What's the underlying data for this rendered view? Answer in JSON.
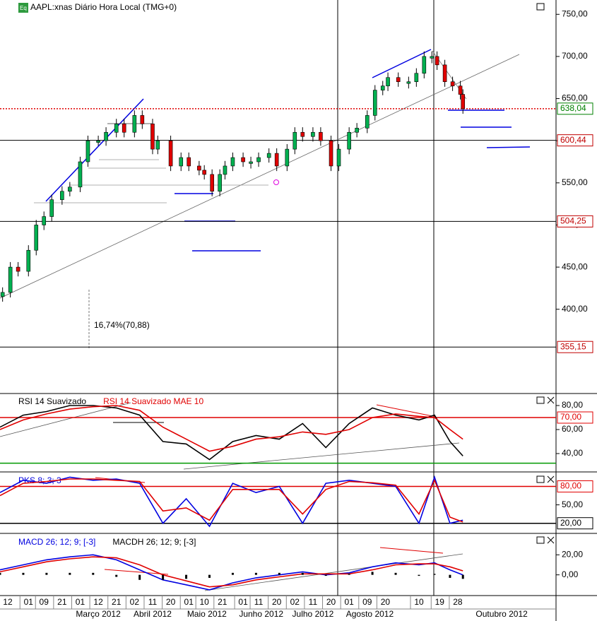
{
  "chart_data": [
    {
      "type": "candlestick",
      "title": "AAPL:xnas Diário Hora Local (TMG+0)",
      "annotation": "16,74%(70,88)",
      "xlim": [
        0,
        215
      ],
      "ylim": [
        300,
        767
      ],
      "yticks": [
        {
          "value": 400,
          "label": "400,00"
        },
        {
          "value": 450,
          "label": "450,00"
        },
        {
          "value": 500,
          "label": "500,00"
        },
        {
          "value": 550,
          "label": "550,00"
        },
        {
          "value": 600,
          "label": "600,00"
        },
        {
          "value": 650,
          "label": "650,00"
        },
        {
          "value": 700,
          "label": "700,00"
        },
        {
          "value": 750,
          "label": "750,00"
        }
      ],
      "xticks": [
        {
          "value": 3,
          "label": "12"
        },
        {
          "value": 11,
          "label": "01"
        },
        {
          "value": 17,
          "label": "09"
        },
        {
          "value": 24,
          "label": "21"
        },
        {
          "value": 31,
          "label": "01"
        },
        {
          "value": 38,
          "label": "12"
        },
        {
          "value": 45,
          "label": "21"
        },
        {
          "value": 52,
          "label": "02"
        },
        {
          "value": 59,
          "label": "11"
        },
        {
          "value": 66,
          "label": "20"
        },
        {
          "value": 73,
          "label": "01"
        },
        {
          "value": 79,
          "label": "10"
        },
        {
          "value": 86,
          "label": "21"
        },
        {
          "value": 94,
          "label": "01"
        },
        {
          "value": 100,
          "label": "11"
        },
        {
          "value": 107,
          "label": "20"
        },
        {
          "value": 114,
          "label": "02"
        },
        {
          "value": 121,
          "label": "11"
        },
        {
          "value": 128,
          "label": "20"
        },
        {
          "value": 135,
          "label": "01"
        },
        {
          "value": 142,
          "label": "09"
        },
        {
          "value": 149,
          "label": "20"
        },
        {
          "value": 162,
          "label": "10"
        },
        {
          "value": 170,
          "label": "19"
        },
        {
          "value": 177,
          "label": "28"
        }
      ],
      "months": [
        {
          "value": 38,
          "label": "Março 2012"
        },
        {
          "value": 59,
          "label": "Abril 2012"
        },
        {
          "value": 80,
          "label": "Maio 2012"
        },
        {
          "value": 101,
          "label": "Junho 2012"
        },
        {
          "value": 121,
          "label": "Julho 2012"
        },
        {
          "value": 143,
          "label": "Agosto 2012"
        },
        {
          "value": 194,
          "label": "Outubro 2012"
        }
      ],
      "price_lines": [
        {
          "value": 638.04,
          "label": "638,04",
          "color": "#e00000",
          "label_color": "#008000",
          "dotted": true
        },
        {
          "value": 600.44,
          "label": "600,44",
          "color": "#000000",
          "label_color": "#c00000"
        },
        {
          "value": 504.25,
          "label": "504,25",
          "color": "#000000",
          "label_color": "#c00000"
        },
        {
          "value": 355.15,
          "label": "355,15",
          "color": "#000000",
          "label_color": "#c00000"
        }
      ],
      "candles": [
        {
          "x": 1,
          "o": 415,
          "h": 426,
          "l": 409,
          "c": 420
        },
        {
          "x": 4,
          "o": 420,
          "h": 456,
          "l": 414,
          "c": 450
        },
        {
          "x": 7,
          "o": 450,
          "h": 456,
          "l": 439,
          "c": 445
        },
        {
          "x": 11,
          "o": 445,
          "h": 476,
          "l": 439,
          "c": 470
        },
        {
          "x": 14,
          "o": 470,
          "h": 506,
          "l": 464,
          "c": 500
        },
        {
          "x": 17,
          "o": 500,
          "h": 516,
          "l": 494,
          "c": 510
        },
        {
          "x": 20,
          "o": 510,
          "h": 536,
          "l": 504,
          "c": 530
        },
        {
          "x": 24,
          "o": 530,
          "h": 546,
          "l": 524,
          "c": 540
        },
        {
          "x": 27,
          "o": 540,
          "h": 551,
          "l": 534,
          "c": 545
        },
        {
          "x": 31,
          "o": 545,
          "h": 581,
          "l": 539,
          "c": 575
        },
        {
          "x": 34,
          "o": 575,
          "h": 606,
          "l": 569,
          "c": 600
        },
        {
          "x": 38,
          "o": 598,
          "h": 606,
          "l": 594,
          "c": 600
        },
        {
          "x": 41,
          "o": 600,
          "h": 616,
          "l": 594,
          "c": 610
        },
        {
          "x": 45,
          "o": 610,
          "h": 626,
          "l": 604,
          "c": 620
        },
        {
          "x": 48,
          "o": 620,
          "h": 626,
          "l": 604,
          "c": 610
        },
        {
          "x": 52,
          "o": 610,
          "h": 636,
          "l": 604,
          "c": 630
        },
        {
          "x": 55,
          "o": 630,
          "h": 636,
          "l": 614,
          "c": 620
        },
        {
          "x": 59,
          "o": 620,
          "h": 626,
          "l": 584,
          "c": 590
        },
        {
          "x": 61,
          "o": 590,
          "h": 606,
          "l": 584,
          "c": 600
        },
        {
          "x": 66,
          "o": 600,
          "h": 606,
          "l": 564,
          "c": 570
        },
        {
          "x": 70,
          "o": 570,
          "h": 586,
          "l": 564,
          "c": 580
        },
        {
          "x": 73,
          "o": 580,
          "h": 586,
          "l": 564,
          "c": 570
        },
        {
          "x": 77,
          "o": 570,
          "h": 576,
          "l": 559,
          "c": 565
        },
        {
          "x": 79,
          "o": 565,
          "h": 571,
          "l": 554,
          "c": 560
        },
        {
          "x": 82,
          "o": 560,
          "h": 566,
          "l": 534,
          "c": 540
        },
        {
          "x": 85,
          "o": 540,
          "h": 566,
          "l": 534,
          "c": 560
        },
        {
          "x": 87,
          "o": 560,
          "h": 576,
          "l": 554,
          "c": 570
        },
        {
          "x": 90,
          "o": 570,
          "h": 586,
          "l": 564,
          "c": 580
        },
        {
          "x": 94,
          "o": 580,
          "h": 586,
          "l": 569,
          "c": 575
        },
        {
          "x": 97,
          "o": 573,
          "h": 581,
          "l": 567,
          "c": 575
        },
        {
          "x": 100,
          "o": 575,
          "h": 586,
          "l": 569,
          "c": 580
        },
        {
          "x": 104,
          "o": 580,
          "h": 591,
          "l": 574,
          "c": 585
        },
        {
          "x": 107,
          "o": 585,
          "h": 591,
          "l": 564,
          "c": 570
        },
        {
          "x": 111,
          "o": 570,
          "h": 596,
          "l": 564,
          "c": 590
        },
        {
          "x": 114,
          "o": 590,
          "h": 616,
          "l": 584,
          "c": 610
        },
        {
          "x": 117,
          "o": 610,
          "h": 616,
          "l": 599,
          "c": 605
        },
        {
          "x": 121,
          "o": 605,
          "h": 616,
          "l": 599,
          "c": 610
        },
        {
          "x": 124,
          "o": 610,
          "h": 616,
          "l": 594,
          "c": 600
        },
        {
          "x": 128,
          "o": 600,
          "h": 606,
          "l": 564,
          "c": 570
        },
        {
          "x": 131,
          "o": 570,
          "h": 596,
          "l": 564,
          "c": 590
        },
        {
          "x": 135,
          "o": 590,
          "h": 616,
          "l": 584,
          "c": 610
        },
        {
          "x": 138,
          "o": 610,
          "h": 621,
          "l": 604,
          "c": 615
        },
        {
          "x": 142,
          "o": 615,
          "h": 636,
          "l": 609,
          "c": 630
        },
        {
          "x": 145,
          "o": 630,
          "h": 666,
          "l": 624,
          "c": 660
        },
        {
          "x": 148,
          "o": 660,
          "h": 671,
          "l": 654,
          "c": 665
        },
        {
          "x": 150,
          "o": 665,
          "h": 681,
          "l": 659,
          "c": 675
        },
        {
          "x": 154,
          "o": 675,
          "h": 681,
          "l": 664,
          "c": 670
        },
        {
          "x": 158,
          "o": 668,
          "h": 676,
          "l": 662,
          "c": 670
        },
        {
          "x": 161,
          "o": 670,
          "h": 686,
          "l": 664,
          "c": 680
        },
        {
          "x": 164,
          "o": 680,
          "h": 706,
          "l": 674,
          "c": 700
        },
        {
          "x": 167,
          "o": 698,
          "h": 706,
          "l": 692,
          "c": 700
        },
        {
          "x": 169,
          "o": 700,
          "h": 706,
          "l": 684,
          "c": 690
        },
        {
          "x": 172,
          "o": 690,
          "h": 696,
          "l": 664,
          "c": 670
        },
        {
          "x": 175,
          "o": 670,
          "h": 676,
          "l": 659,
          "c": 665
        },
        {
          "x": 178,
          "o": 665,
          "h": 671,
          "l": 649,
          "c": 655
        },
        {
          "x": 179,
          "o": 655,
          "h": 661,
          "l": 632,
          "c": 638
        }
      ]
    },
    {
      "type": "line",
      "xlim": [
        0,
        215
      ],
      "ylim": [
        25.3,
        90
      ],
      "yticks": [
        {
          "value": 40,
          "label": "40,00"
        },
        {
          "value": 60,
          "label": "60,00"
        },
        {
          "value": 80,
          "label": "80,00"
        }
      ],
      "levels": [
        {
          "value": 70,
          "label": "70,00",
          "color": "#e00000"
        },
        {
          "value": 32,
          "color": "#009900"
        }
      ],
      "x": [
        0,
        9,
        18,
        27,
        36,
        45,
        54,
        63,
        72,
        81,
        90,
        99,
        108,
        117,
        126,
        135,
        144,
        153,
        162,
        168,
        174,
        179
      ],
      "series": [
        {
          "name": "RSI 14 Suavizado",
          "color": "#000000",
          "values": [
            62,
            72,
            75,
            80,
            80,
            78,
            72,
            50,
            48,
            35,
            50,
            55,
            52,
            65,
            45,
            65,
            78,
            72,
            68,
            72,
            50,
            38
          ]
        },
        {
          "name": "RSI 14 Suavizado MAE 10",
          "color": "#e00000",
          "values": [
            60,
            68,
            73,
            77,
            79,
            80,
            76,
            62,
            52,
            42,
            46,
            52,
            54,
            58,
            56,
            60,
            70,
            73,
            71,
            70,
            60,
            52
          ]
        }
      ]
    },
    {
      "type": "line",
      "xlim": [
        0,
        215
      ],
      "ylim": [
        4.7,
        102.4
      ],
      "yticks": [
        {
          "value": 50,
          "label": "50,00"
        }
      ],
      "levels": [
        {
          "value": 80,
          "label": "80,00",
          "color": "#e00000"
        },
        {
          "value": 20,
          "label": "20,00",
          "color": "#000000"
        }
      ],
      "x": [
        0,
        9,
        18,
        27,
        36,
        45,
        54,
        63,
        72,
        81,
        90,
        99,
        108,
        117,
        126,
        135,
        144,
        153,
        162,
        168,
        174,
        179
      ],
      "series": [
        {
          "name": "PKS 8; 3; 3",
          "color": "#0000e0",
          "values": [
            70,
            90,
            85,
            95,
            90,
            92,
            85,
            20,
            60,
            15,
            85,
            70,
            80,
            20,
            85,
            90,
            85,
            80,
            20,
            95,
            20,
            25
          ]
        },
        {
          "color": "#e00000",
          "values": [
            65,
            85,
            88,
            92,
            92,
            90,
            88,
            40,
            45,
            25,
            75,
            75,
            75,
            35,
            75,
            88,
            86,
            82,
            35,
            90,
            30,
            22
          ]
        }
      ]
    },
    {
      "type": "line",
      "xlim": [
        0,
        215
      ],
      "ylim": [
        -20.7,
        40.7
      ],
      "yticks": [
        {
          "value": 0,
          "label": "0,00"
        },
        {
          "value": 20,
          "label": "20,00"
        }
      ],
      "x": [
        0,
        9,
        18,
        27,
        36,
        45,
        54,
        63,
        72,
        81,
        90,
        99,
        108,
        117,
        126,
        135,
        144,
        153,
        162,
        168,
        174,
        179
      ],
      "series": [
        {
          "name": "MACD 26; 12; 9; [-3]",
          "color": "#0000e0",
          "values": [
            5,
            10,
            15,
            18,
            20,
            15,
            5,
            -5,
            -10,
            -15,
            -8,
            -3,
            0,
            3,
            0,
            2,
            8,
            12,
            10,
            12,
            5,
            0
          ]
        },
        {
          "color": "#e00000",
          "values": [
            3,
            8,
            13,
            16,
            18,
            17,
            10,
            0,
            -6,
            -12,
            -10,
            -5,
            -2,
            1,
            1,
            1,
            5,
            10,
            11,
            11,
            8,
            4
          ]
        },
        {
          "name": "MACDH 26; 12; 9; [-3]",
          "color": "#000000",
          "bars": true,
          "values": [
            2,
            2,
            2,
            2,
            2,
            -2,
            -5,
            -5,
            -4,
            -3,
            2,
            2,
            2,
            2,
            -1,
            1,
            3,
            2,
            -1,
            1,
            -3,
            -4
          ]
        }
      ]
    }
  ]
}
